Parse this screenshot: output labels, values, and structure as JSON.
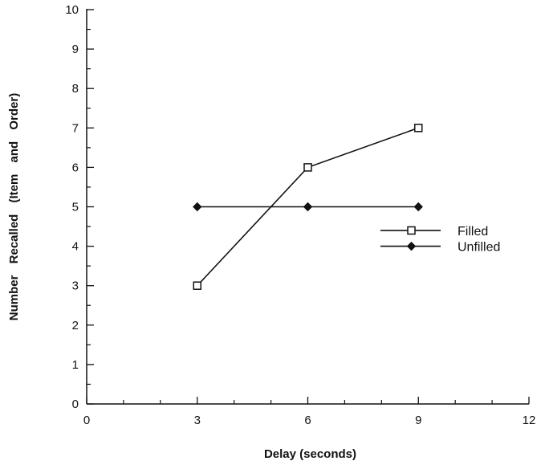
{
  "chart_data": {
    "type": "line",
    "xlabel": "Delay (seconds)",
    "ylabel": "Number Recalled (Item and Order)",
    "xlim": [
      0,
      12
    ],
    "ylim": [
      0,
      10
    ],
    "xticks": [
      0,
      3,
      6,
      9,
      12
    ],
    "yticks": [
      0,
      1,
      2,
      3,
      4,
      5,
      6,
      7,
      8,
      9,
      10
    ],
    "grid": false,
    "legend_position": "right",
    "series": [
      {
        "name": "Filled",
        "marker": "square-open",
        "x": [
          3,
          6,
          9
        ],
        "y": [
          3,
          6,
          7
        ]
      },
      {
        "name": "Unfilled",
        "marker": "diamond-filled",
        "x": [
          3,
          6,
          9
        ],
        "y": [
          5,
          5,
          5
        ]
      }
    ]
  }
}
